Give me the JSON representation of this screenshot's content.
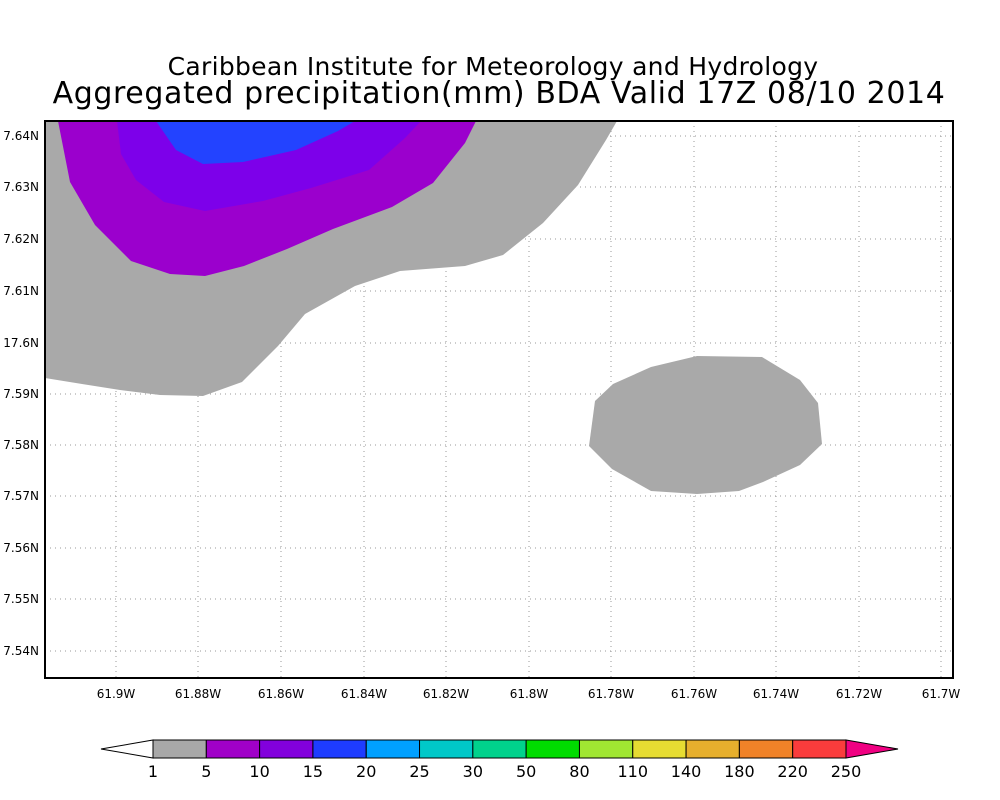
{
  "title_line1": "Caribbean Institute for Meteorology and Hydrology",
  "title_line2": "Aggregated precipitation(mm) BDA Valid 17Z 08/10 2014",
  "map": {
    "lon_labels": [
      "61.9W",
      "61.88W",
      "61.86W",
      "61.84W",
      "61.82W",
      "61.8W",
      "61.78W",
      "61.76W",
      "61.74W",
      "61.72W",
      "61.7W"
    ],
    "lat_labels": [
      "7.64N",
      "7.63N",
      "7.62N",
      "7.61N",
      "17.6N",
      "7.59N",
      "7.58N",
      "7.57N",
      "7.56N",
      "7.55N",
      "7.54N"
    ],
    "gridlines": true,
    "contour_colors": [
      "#a9a9a9",
      "#9b00cd",
      "#7d00ea",
      "#2343ff"
    ]
  },
  "colorbar": {
    "labels": [
      "1",
      "5",
      "10",
      "15",
      "20",
      "25",
      "30",
      "50",
      "80",
      "110",
      "140",
      "180",
      "220",
      "250"
    ],
    "colors": [
      "#a8a8a8",
      "#a000c8",
      "#8200dc",
      "#1e3cff",
      "#00a0ff",
      "#00c8c8",
      "#00d28c",
      "#00dc00",
      "#a0e632",
      "#e6dc32",
      "#e6af2d",
      "#f08228",
      "#fa3c3c",
      "#f00082"
    ]
  }
}
